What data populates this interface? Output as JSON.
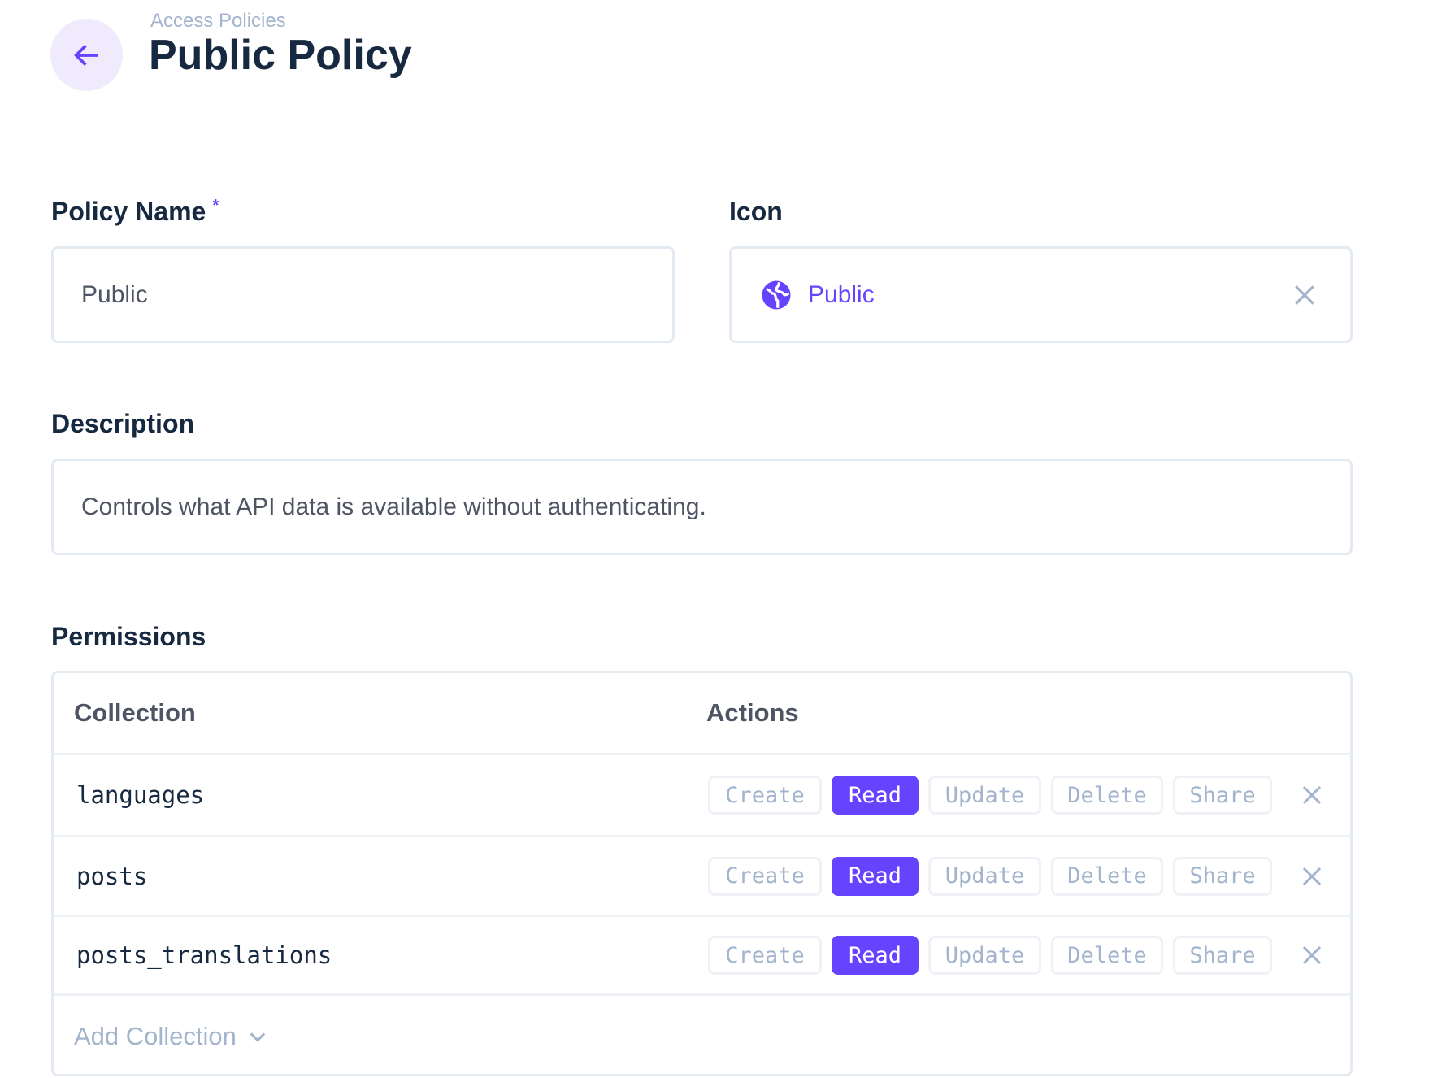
{
  "header": {
    "breadcrumb": "Access Policies",
    "title": "Public Policy",
    "back_icon": "arrow-left-icon"
  },
  "form": {
    "policy_name": {
      "label": "Policy Name",
      "required_mark": "*",
      "value": "Public"
    },
    "icon": {
      "label": "Icon",
      "value": "Public",
      "icon": "globe-icon"
    },
    "description": {
      "label": "Description",
      "value": "Controls what API data is available without authenticating."
    }
  },
  "permissions": {
    "label": "Permissions",
    "columns": {
      "collection": "Collection",
      "actions": "Actions"
    },
    "action_labels": [
      "Create",
      "Read",
      "Update",
      "Delete",
      "Share"
    ],
    "rows": [
      {
        "collection": "languages",
        "enabled": [
          "Read"
        ]
      },
      {
        "collection": "posts",
        "enabled": [
          "Read"
        ]
      },
      {
        "collection": "posts_translations",
        "enabled": [
          "Read"
        ]
      }
    ],
    "add_collection": "Add Collection"
  },
  "colors": {
    "accent": "#6644ff",
    "text": "#172940",
    "muted": "#a2b5cd",
    "border": "#e4eaf1"
  }
}
